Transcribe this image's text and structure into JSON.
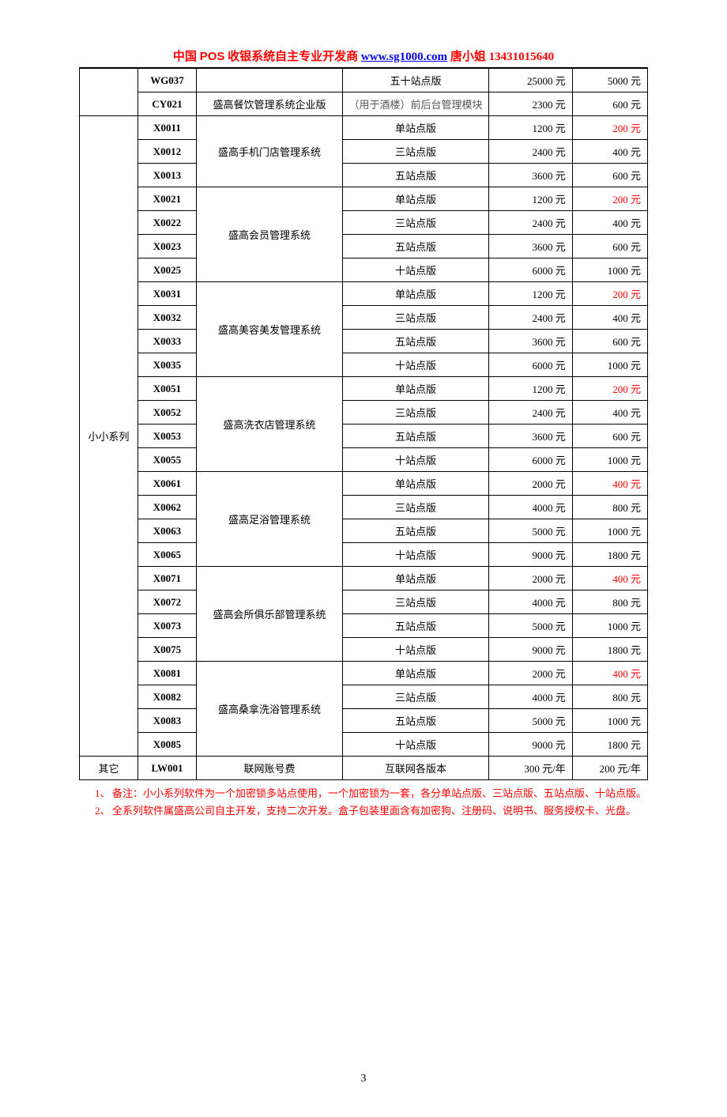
{
  "header": {
    "prefix": "中国 ",
    "pos": "POS",
    "mid": " 收银系统自主专业开发商",
    "gap": "    ",
    "url": "www.sg1000.com",
    "tail": "  唐小姐  13431015640"
  },
  "top_rows": [
    {
      "series": "",
      "code": "WG037",
      "sys": "",
      "edition": "五十站点版",
      "p1": "25000 元",
      "p2": "5000 元",
      "red": false
    },
    {
      "series": "",
      "code": "CY021",
      "sys": "盛高餐饮管理系统企业版",
      "edition": "（用于酒楼）前后台管理模块",
      "p1": "2300 元",
      "p2": "600 元",
      "red": false,
      "small": true
    }
  ],
  "xiaoxiao_label": "小小系列",
  "groups": [
    {
      "sys": "盛高手机门店管理系统",
      "rows": [
        {
          "code": "X0011",
          "edition": "单站点版",
          "p1": "1200 元",
          "p2": "200 元",
          "red": true
        },
        {
          "code": "X0012",
          "edition": "三站点版",
          "p1": "2400 元",
          "p2": "400 元",
          "red": false
        },
        {
          "code": "X0013",
          "edition": "五站点版",
          "p1": "3600 元",
          "p2": "600 元",
          "red": false
        }
      ]
    },
    {
      "sys": "盛高会员管理系统",
      "rows": [
        {
          "code": "X0021",
          "edition": "单站点版",
          "p1": "1200 元",
          "p2": "200 元",
          "red": true
        },
        {
          "code": "X0022",
          "edition": "三站点版",
          "p1": "2400 元",
          "p2": "400 元",
          "red": false
        },
        {
          "code": "X0023",
          "edition": "五站点版",
          "p1": "3600 元",
          "p2": "600 元",
          "red": false
        },
        {
          "code": "X0025",
          "edition": "十站点版",
          "p1": "6000 元",
          "p2": "1000 元",
          "red": false
        }
      ]
    },
    {
      "sys": "盛高美容美发管理系统",
      "rows": [
        {
          "code": "X0031",
          "edition": "单站点版",
          "p1": "1200 元",
          "p2": "200 元",
          "red": true
        },
        {
          "code": "X0032",
          "edition": "三站点版",
          "p1": "2400 元",
          "p2": "400 元",
          "red": false
        },
        {
          "code": "X0033",
          "edition": "五站点版",
          "p1": "3600 元",
          "p2": "600 元",
          "red": false
        },
        {
          "code": "X0035",
          "edition": "十站点版",
          "p1": "6000 元",
          "p2": "1000 元",
          "red": false
        }
      ]
    },
    {
      "sys": "盛高洗衣店管理系统",
      "rows": [
        {
          "code": "X0051",
          "edition": "单站点版",
          "p1": "1200 元",
          "p2": "200 元",
          "red": true
        },
        {
          "code": "X0052",
          "edition": "三站点版",
          "p1": "2400 元",
          "p2": "400 元",
          "red": false
        },
        {
          "code": "X0053",
          "edition": "五站点版",
          "p1": "3600 元",
          "p2": "600 元",
          "red": false
        },
        {
          "code": "X0055",
          "edition": "十站点版",
          "p1": "6000 元",
          "p2": "1000 元",
          "red": false
        }
      ]
    },
    {
      "sys": "盛高足浴管理系统",
      "rows": [
        {
          "code": "X0061",
          "edition": "单站点版",
          "p1": "2000 元",
          "p2": "400 元",
          "red": true
        },
        {
          "code": "X0062",
          "edition": "三站点版",
          "p1": "4000 元",
          "p2": "800 元",
          "red": false
        },
        {
          "code": "X0063",
          "edition": "五站点版",
          "p1": "5000 元",
          "p2": "1000 元",
          "red": false
        },
        {
          "code": "X0065",
          "edition": "十站点版",
          "p1": "9000 元",
          "p2": "1800 元",
          "red": false
        }
      ]
    },
    {
      "sys": "盛高会所俱乐部管理系统",
      "rows": [
        {
          "code": "X0071",
          "edition": "单站点版",
          "p1": "2000 元",
          "p2": "400 元",
          "red": true
        },
        {
          "code": "X0072",
          "edition": "三站点版",
          "p1": "4000 元",
          "p2": "800 元",
          "red": false
        },
        {
          "code": "X0073",
          "edition": "五站点版",
          "p1": "5000 元",
          "p2": "1000 元",
          "red": false
        },
        {
          "code": "X0075",
          "edition": "十站点版",
          "p1": "9000 元",
          "p2": "1800 元",
          "red": false
        }
      ]
    },
    {
      "sys": "盛高桑拿洗浴管理系统",
      "rows": [
        {
          "code": "X0081",
          "edition": "单站点版",
          "p1": "2000 元",
          "p2": "400 元",
          "red": true
        },
        {
          "code": "X0082",
          "edition": "三站点版",
          "p1": "4000 元",
          "p2": "800 元",
          "red": false
        },
        {
          "code": "X0083",
          "edition": "五站点版",
          "p1": "5000 元",
          "p2": "1000 元",
          "red": false
        },
        {
          "code": "X0085",
          "edition": "十站点版",
          "p1": "9000 元",
          "p2": "1800 元",
          "red": false
        }
      ]
    }
  ],
  "other_row": {
    "series": "其它",
    "code": "LW001",
    "sys": "联网账号费",
    "edition": "互联网各版本",
    "p1": "300 元/年",
    "p2": "200 元/年"
  },
  "notes": [
    {
      "num": "1、",
      "txt": "备注：小小系列软件为一个加密锁多站点使用，一个加密锁为一套，各分单站点版、三站点版、五站点版、十站点版。"
    },
    {
      "num": "2、",
      "txt": "全系列软件属盛高公司自主开发，支持二次开发。盒子包装里面含有加密狗、注册码、说明书、服务授权卡、光盘。"
    }
  ],
  "page_number": "3"
}
